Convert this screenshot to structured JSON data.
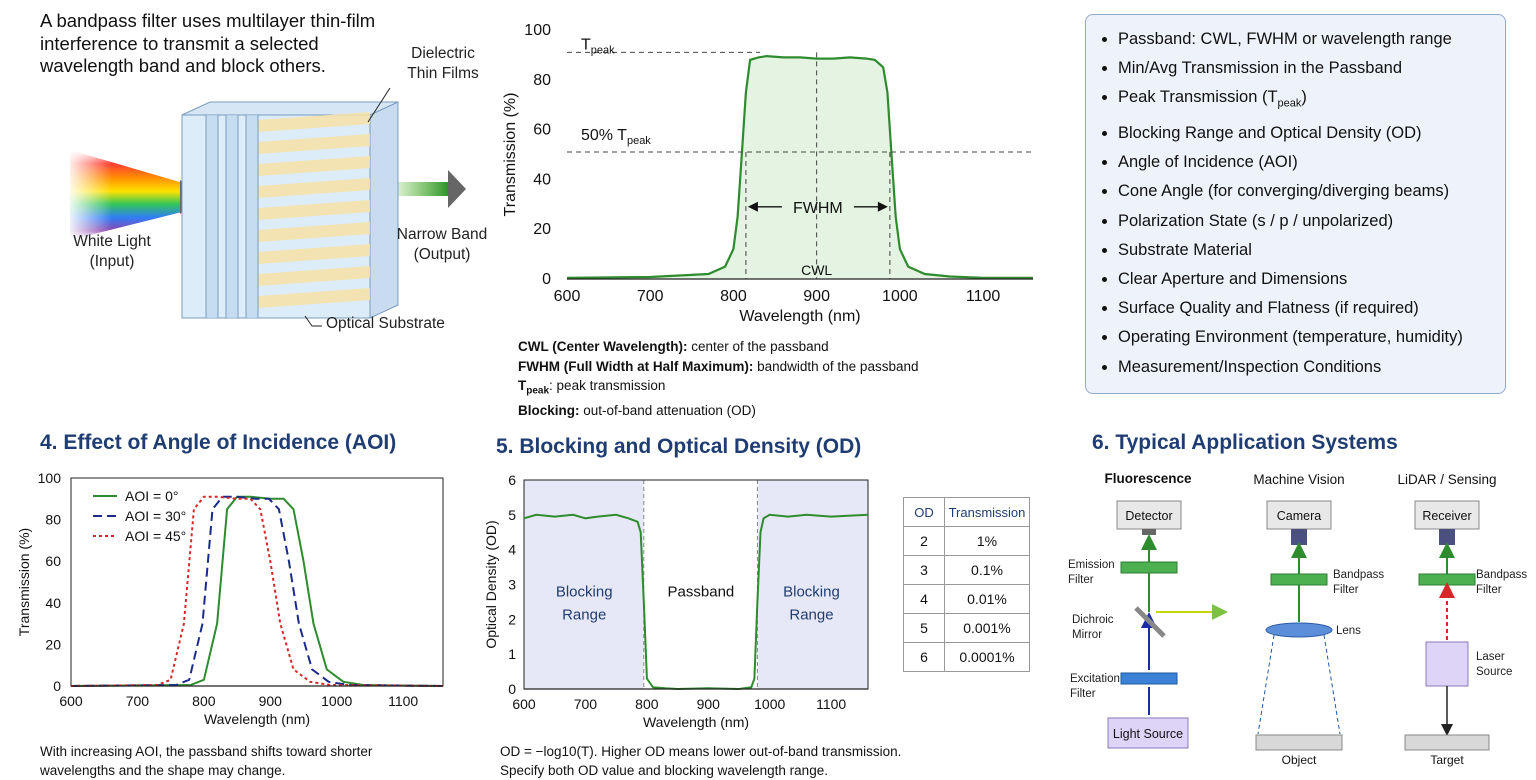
{
  "principle": {
    "intro_lines": [
      "A bandpass filter uses multilayer thin-film",
      "interference to transmit a selected",
      "wavelength band and block others."
    ],
    "label_films": [
      "Dielectric",
      "Thin Films"
    ],
    "label_white": [
      "White Light",
      "(Input)"
    ],
    "label_narrow": [
      "Narrow Band",
      "(Output)"
    ],
    "label_substrate": "Optical Substrate"
  },
  "transmission_curve": {
    "chart_data": {
      "type": "line",
      "xlabel": "Wavelength (nm)",
      "ylabel": "Transmission (%)",
      "xlim": [
        600,
        1160
      ],
      "ylim": [
        0,
        100
      ],
      "xticks": [
        600,
        700,
        800,
        900,
        1000,
        1100
      ],
      "yticks": [
        0,
        20,
        40,
        60,
        80,
        100
      ],
      "series": [
        {
          "x": [
            600,
            700,
            770,
            790,
            800,
            805,
            810,
            815,
            820,
            830,
            840,
            860,
            880,
            900,
            920,
            940,
            960,
            970,
            980,
            985,
            990,
            995,
            1000,
            1010,
            1030,
            1060,
            1100,
            1160
          ],
          "y": [
            0.5,
            0.8,
            2,
            5,
            12,
            25,
            50,
            75,
            88,
            89,
            89.5,
            89,
            89,
            88.5,
            88.5,
            89,
            88.5,
            88,
            85,
            75,
            50,
            25,
            12,
            5,
            2,
            1,
            0.5,
            0.5
          ]
        }
      ],
      "tpeak_level": 91,
      "half_level": 51,
      "cwl_x": 900,
      "fwhm_range": [
        815,
        988
      ],
      "labels": {
        "tpeak": "T",
        "tpeak_sub": "peak",
        "half_prefix": "50% T",
        "half_sub": "peak",
        "fwhm": "FWHM",
        "cwl": "CWL"
      }
    },
    "glossary": [
      {
        "term": "CWL (Center Wavelength):",
        "desc": " center of the passband"
      },
      {
        "term": "FWHM (Full Width at Half Maximum):",
        "desc": " bandwidth of the passband"
      },
      {
        "term": "T",
        "sub": "peak",
        "desc": ": peak transmission"
      },
      {
        "term": "Blocking:",
        "desc": " out-of-band attenuation (OD)"
      }
    ]
  },
  "parameters": [
    {
      "text": "Passband: CWL, FWHM or wavelength range"
    },
    {
      "text": "Min/Avg Transmission in the Passband"
    },
    {
      "text": "Peak Transmission (T",
      "sub": "peak",
      "tail": ")"
    },
    {
      "text": "Blocking Range and Optical Density (OD)"
    },
    {
      "text": "Angle of Incidence (AOI)"
    },
    {
      "text": "Cone Angle (for converging/diverging beams)"
    },
    {
      "text": "Polarization State (s / p / unpolarized)"
    },
    {
      "text": "Substrate Material"
    },
    {
      "text": "Clear Aperture and Dimensions"
    },
    {
      "text": "Surface Quality and Flatness (if required)"
    },
    {
      "text": "Operating Environment (temperature, humidity)"
    },
    {
      "text": "Measurement/Inspection Conditions"
    }
  ],
  "aoi": {
    "title": "4. Effect of Angle of Incidence (AOI)",
    "chart_data": {
      "type": "line",
      "xlabel": "Wavelength (nm)",
      "ylabel": "Transmission (%)",
      "xlim": [
        600,
        1160
      ],
      "ylim": [
        0,
        100
      ],
      "xticks": [
        600,
        700,
        800,
        900,
        1000,
        1100
      ],
      "yticks": [
        0,
        20,
        40,
        60,
        80,
        100
      ],
      "series": [
        {
          "name": "AOI = 0°",
          "color": "#2e8b2e",
          "dash": "",
          "shift": 0
        },
        {
          "name": "AOI = 30°",
          "color": "#1a2a8a",
          "dash": "9,5",
          "shift": -22
        },
        {
          "name": "AOI = 45°",
          "color": "#d62828",
          "dash": "3,3",
          "shift": -50
        }
      ],
      "base_curve": {
        "x": [
          600,
          780,
          800,
          820,
          835,
          850,
          870,
          900,
          920,
          935,
          950,
          965,
          985,
          1010,
          1040,
          1160
        ],
        "y": [
          0,
          0.5,
          3,
          30,
          85,
          91,
          91,
          90,
          90,
          85,
          60,
          30,
          8,
          2,
          0.5,
          0
        ]
      }
    },
    "note": [
      "With increasing AOI, the passband shifts toward shorter",
      "wavelengths and the shape may change."
    ]
  },
  "od": {
    "title": "5. Blocking and Optical Density (OD)",
    "chart_data": {
      "type": "line",
      "xlabel": "Wavelength (nm)",
      "ylabel": "Optical Density (OD)",
      "xlim": [
        600,
        1160
      ],
      "ylim": [
        0,
        6
      ],
      "xticks": [
        600,
        700,
        800,
        900,
        1000,
        1100
      ],
      "yticks": [
        0,
        1,
        2,
        3,
        4,
        5,
        6
      ],
      "blocking_ranges": [
        [
          600,
          795
        ],
        [
          980,
          1160
        ]
      ],
      "series": [
        {
          "x": [
            600,
            620,
            650,
            680,
            700,
            720,
            750,
            770,
            785,
            790,
            795,
            800,
            810,
            830,
            850,
            900,
            950,
            970,
            975,
            980,
            985,
            990,
            1000,
            1030,
            1060,
            1100,
            1160
          ],
          "y": [
            4.9,
            5,
            4.95,
            5,
            4.9,
            4.95,
            5,
            4.9,
            4.8,
            4.5,
            2.5,
            0.3,
            0.05,
            0.02,
            0,
            0.02,
            0,
            0.05,
            0.3,
            2.5,
            4.5,
            4.9,
            5,
            4.95,
            5,
            4.95,
            5
          ]
        }
      ],
      "region_labels": {
        "left": [
          "Blocking",
          "Range"
        ],
        "center": "Passband",
        "right": [
          "Blocking",
          "Range"
        ]
      }
    },
    "table": {
      "headers": [
        "OD",
        "Transmission"
      ],
      "rows": [
        [
          "2",
          "1%"
        ],
        [
          "3",
          "0.1%"
        ],
        [
          "4",
          "0.01%"
        ],
        [
          "5",
          "0.001%"
        ],
        [
          "6",
          "0.0001%"
        ]
      ]
    },
    "note": [
      "OD = −log10(T). Higher OD means lower out-of-band transmission.",
      "Specify both OD value and blocking wavelength range."
    ]
  },
  "apps": {
    "title": "6. Typical Application Systems",
    "fluorescence": {
      "heading": "Fluorescence",
      "detector": "Detector",
      "emission": [
        "Emission",
        "Filter"
      ],
      "dichroic": [
        "Dichroic",
        "Mirror"
      ],
      "excitation": [
        "Excitation",
        "Filter"
      ],
      "source": "Light Source"
    },
    "vision": {
      "heading": "Machine Vision",
      "camera": "Camera",
      "filter": [
        "Bandpass",
        "Filter"
      ],
      "lens": "Lens",
      "object": "Object"
    },
    "lidar": {
      "heading": "LiDAR / Sensing",
      "receiver": "Receiver",
      "filter": [
        "Bandpass",
        "Filter"
      ],
      "laser": [
        "Laser",
        "Source"
      ],
      "target": "Target"
    }
  }
}
